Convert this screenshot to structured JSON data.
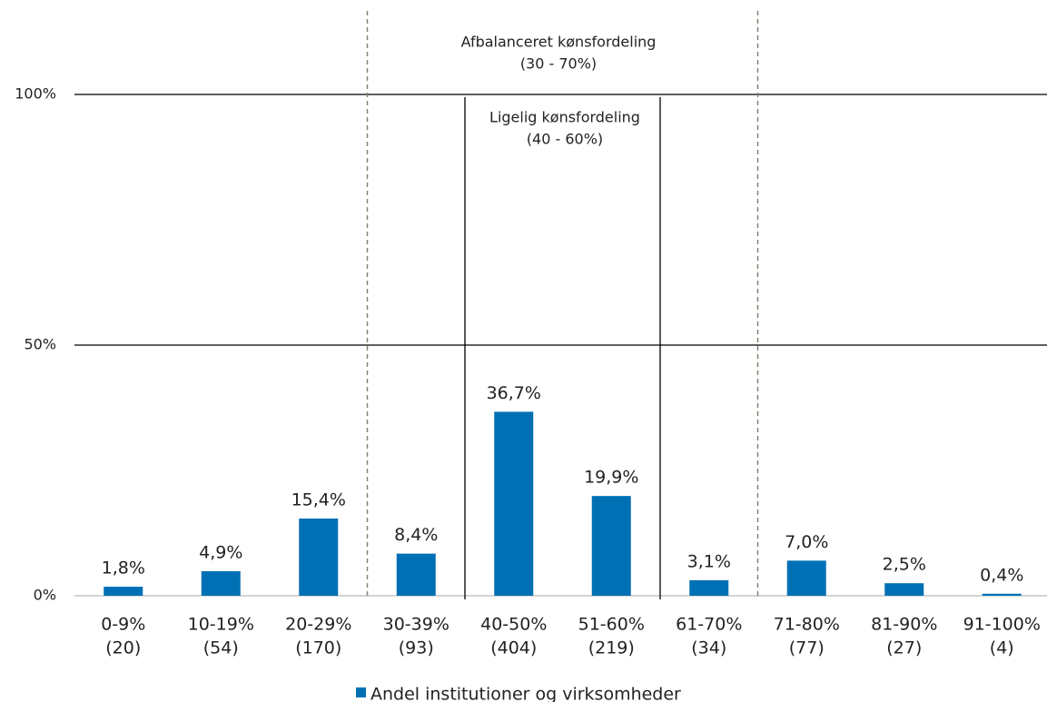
{
  "chart_data": {
    "type": "bar",
    "categories": [
      [
        "0-9%",
        "(20)"
      ],
      [
        "10-19%",
        "(54)"
      ],
      [
        "20-29%",
        "(170)"
      ],
      [
        "30-39%",
        "(93)"
      ],
      [
        "40-50%",
        "(404)"
      ],
      [
        "51-60%",
        "(219)"
      ],
      [
        "61-70%",
        "(34)"
      ],
      [
        "71-80%",
        "(77)"
      ],
      [
        "81-90%",
        "(27)"
      ],
      [
        "91-100%",
        "(4)"
      ]
    ],
    "series": [
      {
        "name": "Andel institutioner og virksomheder",
        "color": "#0070b5",
        "values": [
          1.8,
          4.9,
          15.4,
          8.4,
          36.7,
          19.9,
          3.1,
          7.0,
          2.5,
          0.4
        ],
        "value_labels": [
          "1,8%",
          "4,9%",
          "15,4%",
          "8,4%",
          "36,7%",
          "19,9%",
          "3,1%",
          "7,0%",
          "2,5%",
          "0,4%"
        ]
      }
    ],
    "ylim": [
      0,
      100
    ],
    "yticks": [
      {
        "value": 0,
        "label": "0%"
      },
      {
        "value": 50,
        "label": "50%"
      },
      {
        "value": 100,
        "label": "100%"
      }
    ],
    "grid": true,
    "legend": "bottom",
    "annotations": [
      [
        "Afbalanceret kønsfordeling",
        "(30 - 70%)"
      ],
      [
        "Ligelig kønsfordeling",
        "(40 - 60%)"
      ]
    ]
  }
}
